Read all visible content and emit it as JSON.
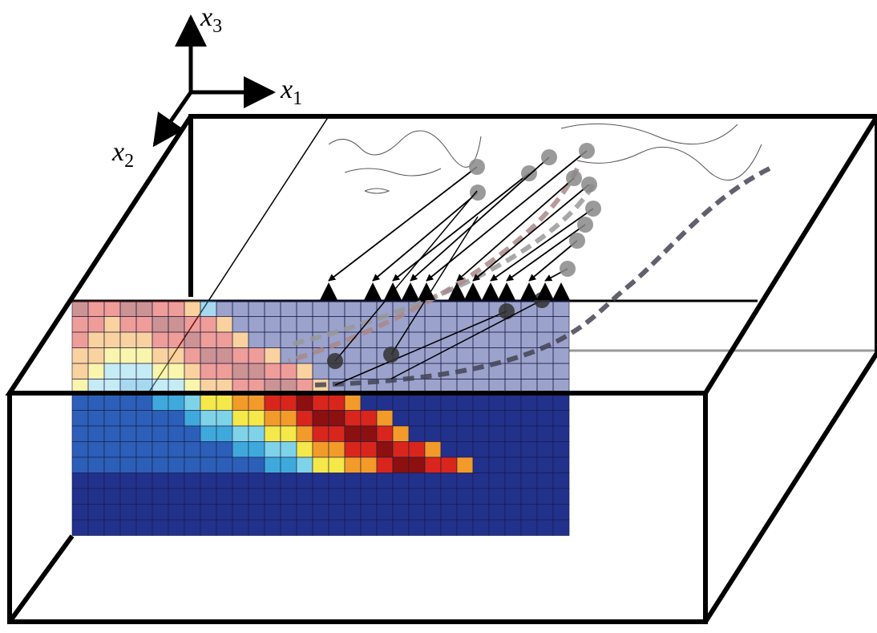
{
  "axes": [
    {
      "label": "x",
      "subscript": "3"
    },
    {
      "label": "x",
      "subscript": "1"
    },
    {
      "label": "x",
      "subscript": "2"
    }
  ]
}
